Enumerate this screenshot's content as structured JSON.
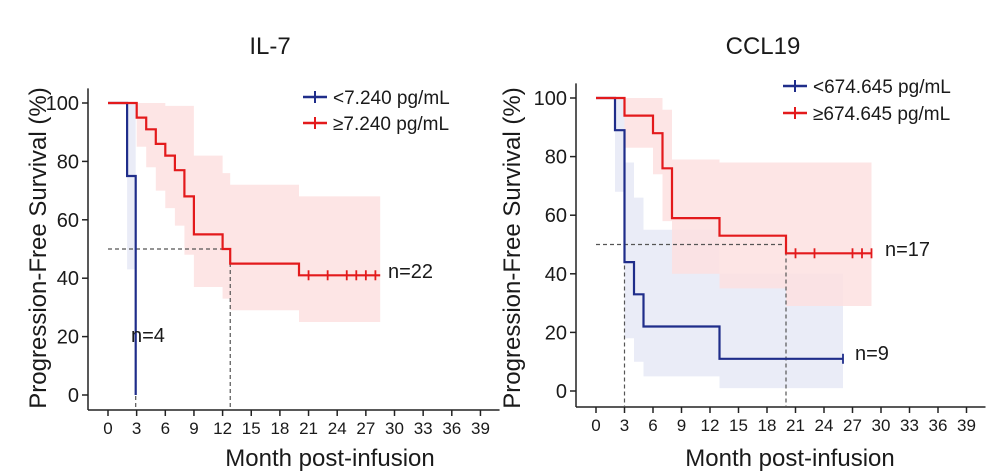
{
  "chart_data": [
    {
      "type": "line",
      "subtype": "kaplan-meier",
      "title": "IL-7",
      "xlabel": "Month post-infusion",
      "ylabel": "Progression-Free Survival (%)",
      "xlim": [
        -2,
        41
      ],
      "ylim": [
        -5,
        105
      ],
      "x_ticks": [
        0,
        3,
        6,
        9,
        12,
        15,
        18,
        21,
        24,
        27,
        30,
        33,
        36,
        39
      ],
      "y_ticks": [
        0,
        20,
        40,
        60,
        80,
        100
      ],
      "grid": false,
      "legend_position": "top-right",
      "median_reference_y": 50,
      "series": [
        {
          "name": "<7.240 pg/mL",
          "color": "#1f2d8a",
          "band_color": "#e6e9f6",
          "n_label": "n=4",
          "steps": [
            [
              0,
              100
            ],
            [
              2,
              100
            ],
            [
              2,
              75
            ],
            [
              2.9,
              75
            ],
            [
              2.9,
              0
            ]
          ],
          "censor_times": [],
          "ci_lower_steps": [
            [
              0,
              100
            ],
            [
              2,
              100
            ],
            [
              2,
              43
            ],
            [
              2.9,
              43
            ]
          ],
          "ci_upper_steps": [
            [
              0,
              100
            ],
            [
              2.9,
              100
            ]
          ],
          "median_x": 2.9
        },
        {
          "name": "≥7.240 pg/mL",
          "color": "#e31a1c",
          "band_color": "#fde0e0",
          "n_label": "n=22",
          "steps": [
            [
              0,
              100
            ],
            [
              3,
              100
            ],
            [
              3,
              95
            ],
            [
              4,
              95
            ],
            [
              4,
              91
            ],
            [
              5,
              91
            ],
            [
              5,
              86
            ],
            [
              6,
              86
            ],
            [
              6,
              82
            ],
            [
              7,
              82
            ],
            [
              7,
              77
            ],
            [
              8,
              77
            ],
            [
              8,
              68
            ],
            [
              9,
              68
            ],
            [
              9,
              55
            ],
            [
              12,
              55
            ],
            [
              12,
              50
            ],
            [
              12.8,
              50
            ],
            [
              12.8,
              45
            ],
            [
              20,
              45
            ],
            [
              20,
              41
            ],
            [
              28.5,
              41
            ]
          ],
          "censor_times": [
            21,
            23,
            25,
            26,
            27,
            28
          ],
          "ci_lower_steps": [
            [
              0,
              100
            ],
            [
              3,
              100
            ],
            [
              3,
              85
            ],
            [
              4,
              85
            ],
            [
              4,
              78
            ],
            [
              5,
              78
            ],
            [
              5,
              70
            ],
            [
              6,
              70
            ],
            [
              6,
              64
            ],
            [
              7,
              64
            ],
            [
              7,
              58
            ],
            [
              8,
              58
            ],
            [
              8,
              48
            ],
            [
              9,
              48
            ],
            [
              9,
              37
            ],
            [
              12,
              37
            ],
            [
              12,
              33
            ],
            [
              12.8,
              33
            ],
            [
              12.8,
              29
            ],
            [
              20,
              29
            ],
            [
              20,
              25
            ],
            [
              28.5,
              25
            ]
          ],
          "ci_upper_steps": [
            [
              0,
              100
            ],
            [
              6,
              100
            ],
            [
              6,
              99
            ],
            [
              9,
              99
            ],
            [
              9,
              82
            ],
            [
              12,
              82
            ],
            [
              12,
              76
            ],
            [
              12.8,
              76
            ],
            [
              12.8,
              72
            ],
            [
              20,
              72
            ],
            [
              20,
              68
            ],
            [
              28.5,
              68
            ]
          ],
          "median_x": 12.8
        }
      ]
    },
    {
      "type": "line",
      "subtype": "kaplan-meier",
      "title": "CCL19",
      "xlabel": "Month post-infusion",
      "ylabel": "Progression-Free Survival (%)",
      "xlim": [
        -2,
        41
      ],
      "ylim": [
        -5,
        105
      ],
      "x_ticks": [
        0,
        3,
        6,
        9,
        12,
        15,
        18,
        21,
        24,
        27,
        30,
        33,
        36,
        39
      ],
      "y_ticks": [
        0,
        20,
        40,
        60,
        80,
        100
      ],
      "grid": false,
      "legend_position": "top-right",
      "median_reference_y": 50,
      "series": [
        {
          "name": "<674.645 pg/mL",
          "color": "#1f2d8a",
          "band_color": "#e6e9f6",
          "n_label": "n=9",
          "steps": [
            [
              0,
              100
            ],
            [
              2,
              100
            ],
            [
              2,
              89
            ],
            [
              3,
              89
            ],
            [
              3,
              44
            ],
            [
              4,
              44
            ],
            [
              4,
              33
            ],
            [
              5,
              33
            ],
            [
              5,
              22
            ],
            [
              13,
              22
            ],
            [
              13,
              11
            ],
            [
              26,
              11
            ]
          ],
          "censor_times": [
            26
          ],
          "ci_lower_steps": [
            [
              0,
              100
            ],
            [
              2,
              100
            ],
            [
              2,
              68
            ],
            [
              3,
              68
            ],
            [
              3,
              18
            ],
            [
              4,
              18
            ],
            [
              4,
              10
            ],
            [
              5,
              10
            ],
            [
              5,
              5
            ],
            [
              13,
              5
            ],
            [
              13,
              1
            ],
            [
              26,
              1
            ]
          ],
          "ci_upper_steps": [
            [
              0,
              100
            ],
            [
              3,
              100
            ],
            [
              3,
              78
            ],
            [
              4,
              78
            ],
            [
              4,
              66
            ],
            [
              5,
              66
            ],
            [
              5,
              55
            ],
            [
              13,
              55
            ],
            [
              13,
              40
            ],
            [
              26,
              40
            ]
          ],
          "median_x": 3
        },
        {
          "name": "≥674.645 pg/mL",
          "color": "#e31a1c",
          "band_color": "#fde0e0",
          "n_label": "n=17",
          "steps": [
            [
              0,
              100
            ],
            [
              3,
              100
            ],
            [
              3,
              94
            ],
            [
              6,
              94
            ],
            [
              6,
              88
            ],
            [
              7,
              88
            ],
            [
              7,
              76
            ],
            [
              8,
              76
            ],
            [
              8,
              59
            ],
            [
              13,
              59
            ],
            [
              13,
              53
            ],
            [
              20,
              53
            ],
            [
              20,
              47
            ],
            [
              29,
              47
            ]
          ],
          "censor_times": [
            21,
            23,
            27,
            28,
            29
          ],
          "ci_lower_steps": [
            [
              0,
              100
            ],
            [
              3,
              100
            ],
            [
              3,
              83
            ],
            [
              6,
              83
            ],
            [
              6,
              74
            ],
            [
              7,
              74
            ],
            [
              7,
              58
            ],
            [
              8,
              58
            ],
            [
              8,
              40
            ],
            [
              13,
              40
            ],
            [
              13,
              35
            ],
            [
              20,
              35
            ],
            [
              20,
              29
            ],
            [
              29,
              29
            ]
          ],
          "ci_upper_steps": [
            [
              0,
              100
            ],
            [
              7,
              100
            ],
            [
              7,
              96
            ],
            [
              8,
              96
            ],
            [
              8,
              79
            ],
            [
              13,
              79
            ],
            [
              13,
              78
            ],
            [
              29,
              78
            ]
          ],
          "median_x": 20
        }
      ]
    }
  ]
}
